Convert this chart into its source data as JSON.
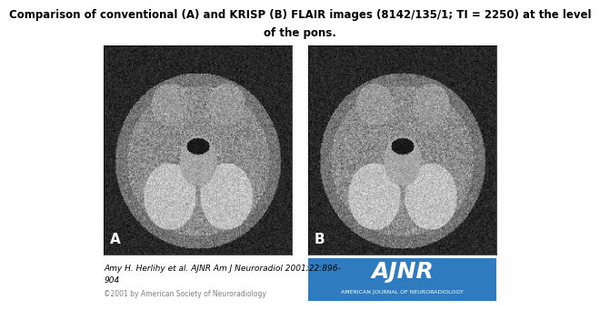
{
  "title_line1": "Comparison of conventional (A) and KRISP (B) FLAIR images (8142/135/1; TI = 2250) at the level",
  "title_line2": "of the pons.",
  "label_A": "A",
  "label_B": "B",
  "citation_line1": "Amy H. Herlihy et al. AJNR Am J Neuroradiol 2001;22:896-",
  "citation_line2": "904",
  "copyright_text": "©2001 by American Society of Neuroradiology",
  "ajnr_text": "AJNR",
  "ajnr_subtext": "AMERICAN JOURNAL OF NEURORADIOLOGY",
  "ajnr_bg_color": "#2E7BBF",
  "background_color": "#ffffff",
  "title_fontsize": 8.5,
  "label_fontsize": 11,
  "citation_fontsize": 6.5,
  "copyright_fontsize": 5.5,
  "ajnr_fontsize": 18,
  "ajnr_sub_fontsize": 4.5
}
